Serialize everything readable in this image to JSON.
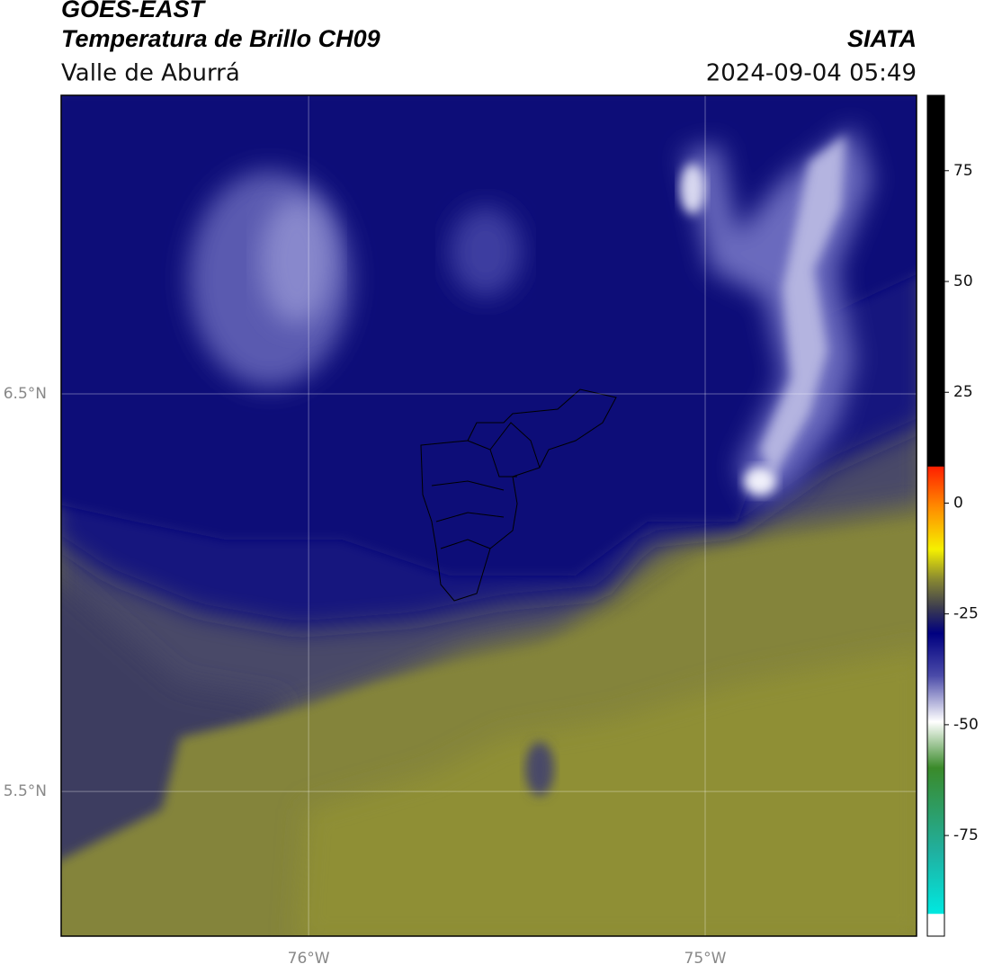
{
  "header": {
    "title": "GOES-EAST",
    "subtitle": "Temperatura de Brillo CH09",
    "region": "Valle de Aburrá",
    "source": "SIATA",
    "datetime": "2024-09-04 05:49"
  },
  "map": {
    "lonlim": [
      -76.624,
      -74.467
    ],
    "latlim": [
      5.136,
      7.251
    ],
    "lon_ticks": [
      {
        "value": -76,
        "label": "76°W"
      },
      {
        "value": -75,
        "label": "75°W"
      }
    ],
    "lat_ticks": [
      {
        "value": 6.5,
        "label": "6.5°N"
      },
      {
        "value": 5.5,
        "label": "5.5°N"
      }
    ]
  },
  "colorbar": {
    "lim": [
      -97.7,
      92
    ],
    "ticks": [
      75,
      50,
      25,
      0,
      -25,
      -50,
      -75
    ]
  }
}
